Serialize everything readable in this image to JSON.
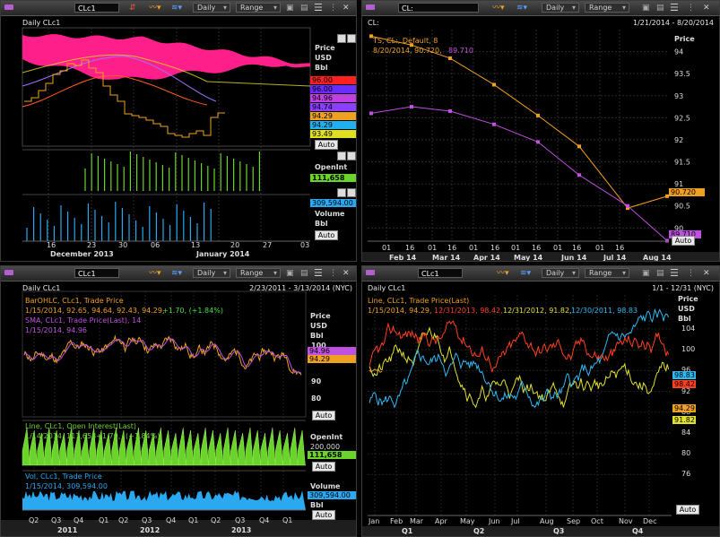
{
  "p1": {
    "symbol": "CLc1",
    "interval": "Daily",
    "range": "Range",
    "title": "Daily CLc1",
    "axis": {
      "label1": "Price",
      "label2": "USD",
      "label3": "Bbl"
    },
    "price_tags": [
      {
        "text": "96.00",
        "color": "#ff2020"
      },
      {
        "text": "96.00",
        "color": "#6a2cff"
      },
      {
        "text": "94.96",
        "color": "#c040e0"
      },
      {
        "text": "94.74",
        "color": "#8d3fff"
      },
      {
        "text": "94.29",
        "color": "#f0a020"
      },
      {
        "text": "94.29",
        "color": "#20b0f0"
      },
      {
        "text": "93.49",
        "color": "#e0e020"
      }
    ],
    "auto": "Auto",
    "openint_label": "OpenInt",
    "openint_value": "111,658",
    "volume_value": "309,594.00",
    "volume_label": "Volume",
    "volume_unit": "Bbl",
    "x_ticks": [
      "16",
      "23",
      "30",
      "06",
      "13",
      "20",
      "27",
      "03"
    ],
    "x_months": [
      "December 2013",
      "January 2014"
    ]
  },
  "p2": {
    "symbol": "CL:",
    "interval": "Daily",
    "range": "Range",
    "title": "CL:",
    "date_range": "1/21/2014 - 8/20/2014",
    "axis_label": "Price",
    "legend": {
      "line1": "TS, CL:, Default,  8",
      "line2a": "8/20/2014, 90.720,",
      "line2b": "89.710"
    },
    "y_ticks": [
      "94",
      "93.5",
      "93",
      "92.5",
      "92",
      "91.5",
      "91",
      "90.5",
      "90"
    ],
    "tag_orange": "90.720",
    "tag_purple": "89.710",
    "auto": "Auto",
    "x_ticks": [
      "01",
      "16",
      "01",
      "16",
      "01",
      "16",
      "01",
      "16",
      "01",
      "16",
      "01",
      "16"
    ],
    "x_months": [
      "Feb 14",
      "Mar 14",
      "Apr 14",
      "May 14",
      "Jun 14",
      "Jul 14",
      "Aug 14"
    ],
    "chart_data": {
      "type": "line",
      "title": "",
      "xlabel": "",
      "ylabel": "Price",
      "ylim": [
        89.7,
        94.5
      ],
      "series": [
        {
          "name": "",
          "color": "#f0a020",
          "x": [
            "Jan 21",
            "Feb 20",
            "Mar 21",
            "Apr 21",
            "May 20",
            "Jun 20",
            "Jul 21",
            "Aug 20"
          ],
          "values": [
            94.35,
            94.15,
            93.85,
            93.25,
            92.55,
            91.85,
            90.45,
            90.72
          ]
        },
        {
          "name": "",
          "color": "#c050e0",
          "x": [
            "Jan 21",
            "Feb 20",
            "Mar 21",
            "Apr 21",
            "May 20",
            "Jun 20",
            "Jul 21",
            "Aug 20"
          ],
          "values": [
            92.6,
            92.75,
            92.65,
            92.35,
            91.95,
            91.2,
            90.5,
            89.71
          ]
        }
      ]
    }
  },
  "p3": {
    "symbol": "CLc1",
    "interval": "Daily",
    "range": "Range",
    "title": "Daily CLc1",
    "date_range": "2/23/2011 - 3/13/2014 (NYC)",
    "legend1": {
      "l1": "BarOHLC, CLc1, Trade Price",
      "l2a": "1/15/2014, 92.65, 94.64, 92.43, 94.29,",
      "l2b": "+1.70, (+1.84%)",
      "l3": "SMA, CLc1, Trade Price(Last),  14",
      "l4": "1/15/2014, 94.96"
    },
    "axis": {
      "label1": "Price",
      "label2": "USD",
      "label3": "Bbl"
    },
    "y_ticks": [
      "100",
      "90",
      "80"
    ],
    "tag1": "94.96",
    "tag2": "94.29",
    "auto": "Auto",
    "legend2": {
      "l1": "Line, CLc1, Open Interest(Last)",
      "l2a": "1/14/2014, 111,658+1.70,",
      "l2b": "(+1.84%)"
    },
    "openint_label": "OpenInt",
    "openint_tick": "200,000",
    "openint_value": "111,658",
    "legend3": {
      "l1": "Vol, CLc1, Trade Price",
      "l2": "1/15/2014, 309,594.00"
    },
    "volume_value": "309,594.00",
    "volume_label": "Volume",
    "volume_unit": "Bbl",
    "x_ticks": [
      "Q2",
      "Q3",
      "Q4",
      "Q1",
      "Q2",
      "Q3",
      "Q4",
      "Q1",
      "Q2",
      "Q3",
      "Q4",
      "Q1"
    ],
    "x_years": [
      "2011",
      "2012",
      "2013"
    ]
  },
  "p4": {
    "symbol": "CLc1",
    "interval": "Daily",
    "range": "Range",
    "title": "Daily CLc1",
    "date_range": "1/1 - 12/31 (NYC)",
    "legend_l1": "Line, CLc1, Trade Price(Last)",
    "legend_items": [
      {
        "text": "1/15/2014, 94.29,",
        "color": "#f0a020"
      },
      {
        "text": "12/31/2013, 98.42,",
        "color": "#ff4020"
      },
      {
        "text": "12/31/2012, 91.82,",
        "color": "#e0e030"
      },
      {
        "text": "12/30/2011, 98.83",
        "color": "#30b8f0"
      }
    ],
    "axis": {
      "label1": "Price",
      "label2": "USD",
      "label3": "Bbl"
    },
    "y_ticks": [
      "104",
      "100",
      "96",
      "92",
      "88",
      "84",
      "80",
      "76"
    ],
    "tags": [
      {
        "text": "98.83",
        "color": "#30b8f0"
      },
      {
        "text": "98.42",
        "color": "#ff4020"
      },
      {
        "text": "94.29",
        "color": "#f0a020"
      },
      {
        "text": "91.82",
        "color": "#e0e030"
      }
    ],
    "auto": "Auto",
    "x_ticks": [
      "Jan",
      "Feb",
      "Mar",
      "Apr",
      "May",
      "Jun",
      "Jul",
      "Aug",
      "Sep",
      "Oct",
      "Nov",
      "Dec"
    ],
    "x_quarters": [
      "Q1",
      "Q2",
      "Q3",
      "Q4"
    ]
  }
}
